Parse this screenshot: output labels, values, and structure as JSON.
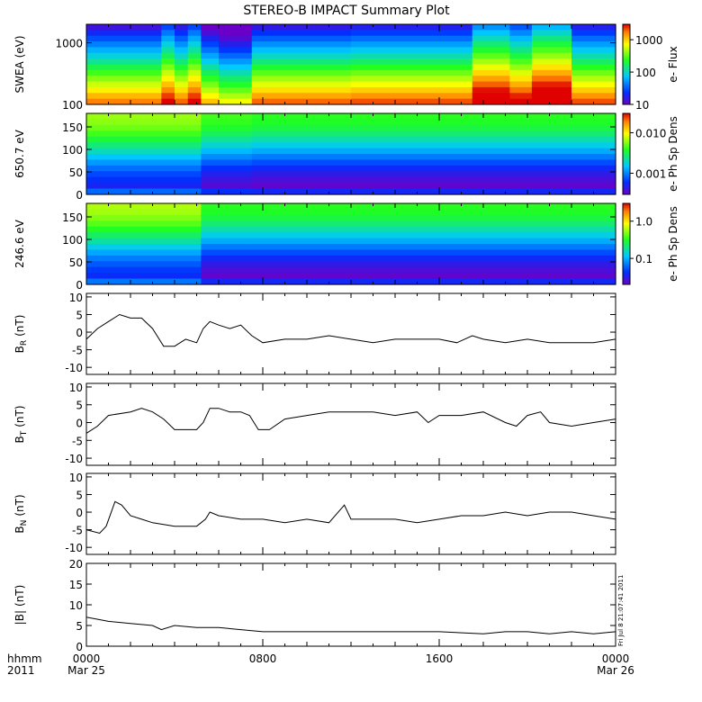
{
  "title": "STEREO-B IMPACT Summary Plot",
  "stamp": "Fri Jul  8 21:07:41 2011",
  "time_axis": {
    "corner_top": "hhmm",
    "corner_bottom": "2011",
    "ticks": [
      {
        "hour": 0,
        "label": "0000",
        "date": "Mar 25"
      },
      {
        "hour": 8,
        "label": "0800",
        "date": ""
      },
      {
        "hour": 16,
        "label": "1600",
        "date": ""
      },
      {
        "hour": 24,
        "label": "0000",
        "date": "Mar 26"
      }
    ]
  },
  "chart_data": [
    {
      "type": "heatmap",
      "id": "swea",
      "ylabel": "SWEA (eV)",
      "yscale": "log",
      "ylim": [
        100,
        2000
      ],
      "yticks": [
        100,
        1000
      ],
      "yticklabels": [
        "100",
        "1000"
      ],
      "colorbar": {
        "label": "e- Flux",
        "scale": "log",
        "range": [
          10,
          3000
        ],
        "ticks": [
          10,
          100,
          1000
        ],
        "ticklabels": [
          "10",
          "100",
          "1000"
        ]
      },
      "segments": [
        {
          "hours": [
            0.0,
            3.4
          ],
          "level": 0.48
        },
        {
          "hours": [
            3.4,
            4.0
          ],
          "level": 0.6
        },
        {
          "hours": [
            4.0,
            4.6
          ],
          "level": 0.5
        },
        {
          "hours": [
            4.6,
            5.2
          ],
          "level": 0.6
        },
        {
          "hours": [
            5.2,
            6.0
          ],
          "level": 0.4
        },
        {
          "hours": [
            6.0,
            7.5
          ],
          "level": 0.32
        },
        {
          "hours": [
            7.5,
            12.0
          ],
          "level": 0.5
        },
        {
          "hours": [
            12.0,
            17.5
          ],
          "level": 0.52
        },
        {
          "hours": [
            17.5,
            19.2
          ],
          "level": 0.7
        },
        {
          "hours": [
            19.2,
            20.2
          ],
          "level": 0.62
        },
        {
          "hours": [
            20.2,
            22.0
          ],
          "level": 0.75
        },
        {
          "hours": [
            22.0,
            24.0
          ],
          "level": 0.52
        }
      ]
    },
    {
      "type": "heatmap",
      "id": "pad650",
      "ylabel": "650.7 eV",
      "ylim": [
        0,
        180
      ],
      "yticks": [
        0,
        50,
        100,
        150
      ],
      "yticklabels": [
        "0",
        "50",
        "100",
        "150"
      ],
      "colorbar": {
        "label": "e- Ph Sp Dens",
        "scale": "log",
        "range": [
          0.0003,
          0.03
        ],
        "ticks": [
          0.001,
          0.01
        ],
        "ticklabels": [
          "0.001",
          "0.010"
        ]
      },
      "segments": [
        {
          "hours": [
            0.0,
            5.2
          ],
          "level": 0.38
        },
        {
          "hours": [
            5.2,
            7.5
          ],
          "level": 0.3
        },
        {
          "hours": [
            7.5,
            24.0
          ],
          "level": 0.28
        }
      ]
    },
    {
      "type": "heatmap",
      "id": "pad246",
      "ylabel": "246.6 eV",
      "ylim": [
        0,
        180
      ],
      "yticks": [
        0,
        50,
        100,
        150
      ],
      "yticklabels": [
        "0",
        "50",
        "100",
        "150"
      ],
      "colorbar": {
        "label": "e- Ph Sp Dens",
        "scale": "log",
        "range": [
          0.02,
          3.0
        ],
        "ticks": [
          0.1,
          1.0
        ],
        "ticklabels": [
          "0.1",
          "1.0"
        ]
      },
      "segments": [
        {
          "hours": [
            0.0,
            5.2
          ],
          "level": 0.4
        },
        {
          "hours": [
            5.2,
            7.5
          ],
          "level": 0.28
        },
        {
          "hours": [
            7.5,
            24.0
          ],
          "level": 0.28
        }
      ]
    },
    {
      "type": "line",
      "id": "br",
      "ylabel": "B",
      "ylabel_sub": "R",
      "yunit": "(nT)",
      "ylim": [
        -12,
        11
      ],
      "yticks": [
        -10,
        -5,
        0,
        5,
        10
      ],
      "yticklabels": [
        "-10",
        "-5",
        "0",
        "5",
        "10"
      ],
      "x": [
        0,
        0.5,
        1.0,
        1.5,
        2.0,
        2.5,
        3.0,
        3.5,
        4.0,
        4.5,
        5.0,
        5.3,
        5.6,
        6.0,
        6.5,
        7.0,
        7.5,
        8.0,
        9.0,
        10.0,
        11.0,
        12.0,
        13.0,
        14.0,
        15.0,
        16.0,
        16.8,
        17.5,
        18.0,
        19.0,
        20.0,
        21.0,
        22.0,
        23.0,
        24.0
      ],
      "y": [
        -2,
        1,
        3,
        5,
        4,
        4,
        1,
        -4,
        -4,
        -2,
        -3,
        1,
        3,
        2,
        1,
        2,
        -1,
        -3,
        -2,
        -2,
        -1,
        -2,
        -3,
        -2,
        -2,
        -2,
        -3,
        -1,
        -2,
        -3,
        -2,
        -3,
        -3,
        -3,
        -2
      ]
    },
    {
      "type": "line",
      "id": "bt",
      "ylabel": "B",
      "ylabel_sub": "T",
      "yunit": "(nT)",
      "ylim": [
        -12,
        11
      ],
      "yticks": [
        -10,
        -5,
        0,
        5,
        10
      ],
      "yticklabels": [
        "-10",
        "-5",
        "0",
        "5",
        "10"
      ],
      "x": [
        0,
        0.5,
        1.0,
        2.0,
        2.5,
        3.0,
        3.5,
        4.0,
        4.5,
        5.0,
        5.3,
        5.6,
        6.0,
        6.5,
        7.0,
        7.4,
        7.8,
        8.3,
        9.0,
        10.0,
        11.0,
        12.0,
        13.0,
        14.0,
        15.0,
        15.5,
        16.0,
        17.0,
        18.0,
        19.0,
        19.5,
        20.0,
        20.6,
        21.0,
        22.0,
        23.0,
        24.0
      ],
      "y": [
        -3,
        -1,
        2,
        3,
        4,
        3,
        1,
        -2,
        -2,
        -2,
        0,
        4,
        4,
        3,
        3,
        2,
        -2,
        -2,
        1,
        2,
        3,
        3,
        3,
        2,
        3,
        0,
        2,
        2,
        3,
        0,
        -1,
        2,
        3,
        0,
        -1,
        0,
        1
      ]
    },
    {
      "type": "line",
      "id": "bn",
      "ylabel": "B",
      "ylabel_sub": "N",
      "yunit": "(nT)",
      "ylim": [
        -12,
        11
      ],
      "yticks": [
        -10,
        -5,
        0,
        5,
        10
      ],
      "yticklabels": [
        "-10",
        "-5",
        "0",
        "5",
        "10"
      ],
      "x": [
        0,
        0.6,
        0.9,
        1.3,
        1.6,
        2.0,
        2.5,
        3.0,
        4.0,
        5.0,
        5.4,
        5.6,
        6.0,
        7.0,
        8.0,
        9.0,
        10.0,
        11.0,
        11.7,
        12.0,
        13.0,
        14.0,
        15.0,
        16.0,
        17.0,
        18.0,
        19.0,
        20.0,
        21.0,
        22.0,
        23.0,
        24.0
      ],
      "y": [
        -5,
        -6,
        -4,
        3,
        2,
        -1,
        -2,
        -3,
        -4,
        -4,
        -2,
        0,
        -1,
        -2,
        -2,
        -3,
        -2,
        -3,
        2,
        -2,
        -2,
        -2,
        -3,
        -2,
        -1,
        -1,
        0,
        -1,
        0,
        0,
        -1,
        -2
      ]
    },
    {
      "type": "line",
      "id": "bmag",
      "ylabel": "|B|",
      "yunit": "(nT)",
      "ylim": [
        0,
        20
      ],
      "yticks": [
        0,
        5,
        10,
        15,
        20
      ],
      "yticklabels": [
        "0",
        "5",
        "10",
        "15",
        "20"
      ],
      "x": [
        0,
        1,
        2,
        3,
        3.4,
        4,
        5,
        6,
        7,
        8,
        9,
        10,
        12,
        14,
        16,
        18,
        19,
        20,
        21,
        22,
        23,
        24
      ],
      "y": [
        7,
        6,
        5.5,
        5,
        4,
        5,
        4.5,
        4.5,
        4,
        3.5,
        3.5,
        3.5,
        3.5,
        3.5,
        3.5,
        3,
        3.5,
        3.5,
        3,
        3.5,
        3,
        3.5
      ]
    }
  ]
}
